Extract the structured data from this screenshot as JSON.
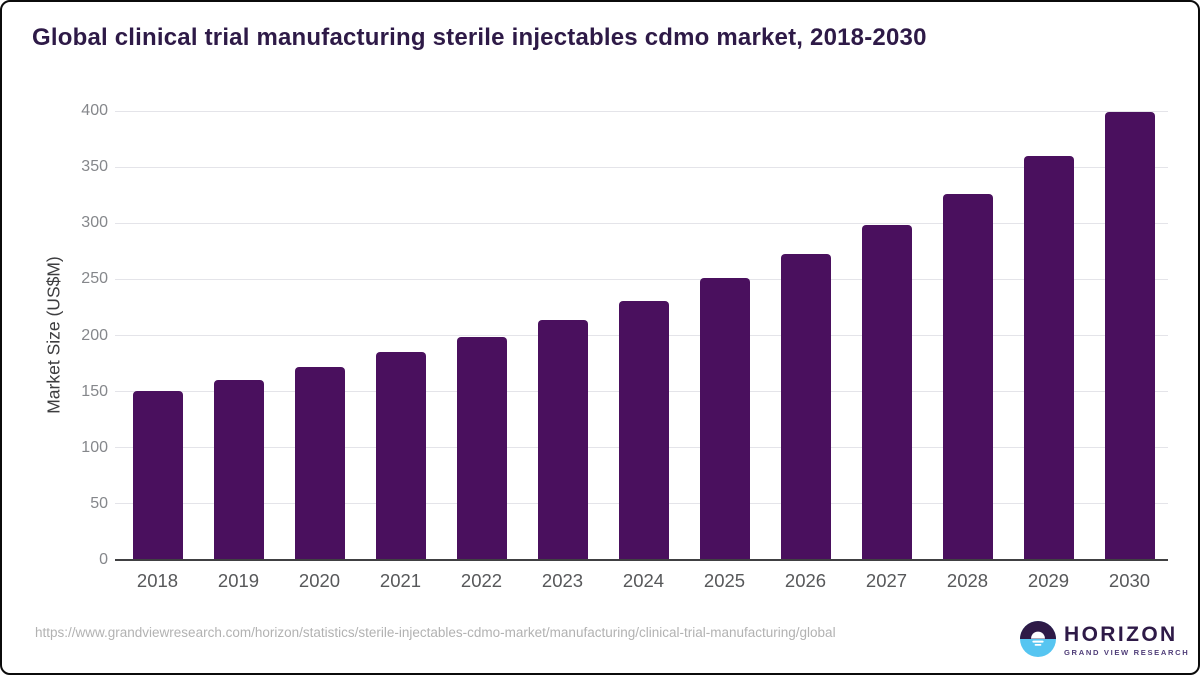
{
  "header": {
    "title": "Global clinical trial manufacturing sterile injectables cdmo market, 2018-2030"
  },
  "chart_data": {
    "type": "bar",
    "title": "Global clinical trial manufacturing sterile injectables cdmo market, 2018-2030",
    "categories": [
      "2018",
      "2019",
      "2020",
      "2021",
      "2022",
      "2023",
      "2024",
      "2025",
      "2026",
      "2027",
      "2028",
      "2029",
      "2030"
    ],
    "values": [
      151,
      160,
      172,
      185,
      199,
      214,
      231,
      251,
      273,
      298,
      326,
      360,
      399
    ],
    "xlabel": "",
    "ylabel": "Market Size (US$M)",
    "ylim": [
      0,
      400
    ],
    "ytick_step": 50,
    "grid": true,
    "legend": "none",
    "bar_color": "#4a105e",
    "gridline_color": "#e4e4e9",
    "axis_line_color": "#404042"
  },
  "footer": {
    "source_url": "https://www.grandviewresearch.com/horizon/statistics/sterile-injectables-cdmo-market/manufacturing/clinical-trial-manufacturing/global",
    "logo": {
      "brand": "HORIZON",
      "tagline": "GRAND VIEW RESEARCH",
      "icon_top_color": "#2e1a47",
      "icon_bottom_color": "#56c5f1"
    }
  }
}
